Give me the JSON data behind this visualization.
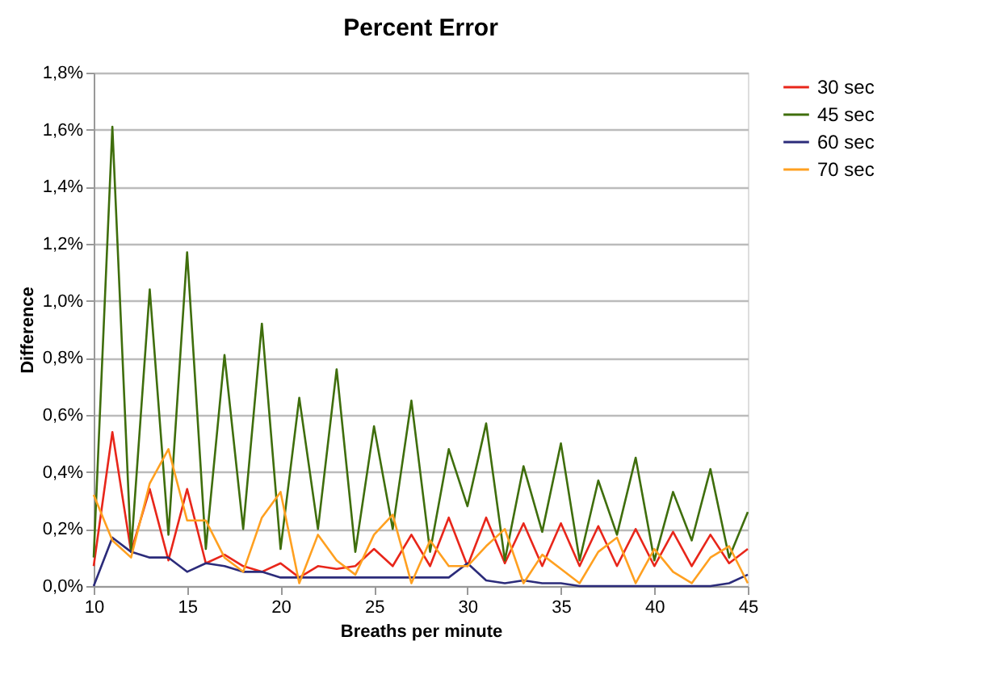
{
  "chart_data": {
    "type": "line",
    "title": "Percent Error",
    "xlabel": "Breaths per minute",
    "ylabel": "Difference",
    "x": [
      10,
      11,
      12,
      13,
      14,
      15,
      16,
      17,
      18,
      19,
      20,
      21,
      22,
      23,
      24,
      25,
      26,
      27,
      28,
      29,
      30,
      31,
      32,
      33,
      34,
      35,
      36,
      37,
      38,
      39,
      40,
      41,
      42,
      43,
      44,
      45
    ],
    "series": [
      {
        "name": "30 sec",
        "color": "#e8261a",
        "values": [
          0.07,
          0.54,
          0.12,
          0.34,
          0.09,
          0.34,
          0.08,
          0.11,
          0.07,
          0.05,
          0.08,
          0.03,
          0.07,
          0.06,
          0.07,
          0.13,
          0.07,
          0.18,
          0.07,
          0.24,
          0.07,
          0.24,
          0.08,
          0.22,
          0.07,
          0.22,
          0.07,
          0.21,
          0.07,
          0.2,
          0.07,
          0.19,
          0.07,
          0.18,
          0.08,
          0.13
        ]
      },
      {
        "name": "45 sec",
        "color": "#3f6e0c",
        "values": [
          0.1,
          1.61,
          0.12,
          1.04,
          0.18,
          1.17,
          0.13,
          0.81,
          0.2,
          0.92,
          0.13,
          0.66,
          0.2,
          0.76,
          0.12,
          0.56,
          0.2,
          0.65,
          0.12,
          0.48,
          0.28,
          0.57,
          0.09,
          0.42,
          0.19,
          0.5,
          0.09,
          0.37,
          0.18,
          0.45,
          0.09,
          0.33,
          0.16,
          0.41,
          0.1,
          0.26
        ]
      },
      {
        "name": "60 sec",
        "color": "#2b2b7a",
        "values": [
          0.0,
          0.17,
          0.12,
          0.1,
          0.1,
          0.05,
          0.08,
          0.07,
          0.05,
          0.05,
          0.03,
          0.03,
          0.03,
          0.03,
          0.03,
          0.03,
          0.03,
          0.03,
          0.03,
          0.03,
          0.08,
          0.02,
          0.01,
          0.02,
          0.01,
          0.01,
          0.0,
          0.0,
          0.0,
          0.0,
          0.0,
          0.0,
          0.0,
          0.0,
          0.01,
          0.04
        ]
      },
      {
        "name": "70 sec",
        "color": "#ffa020",
        "values": [
          0.32,
          0.16,
          0.1,
          0.36,
          0.48,
          0.23,
          0.23,
          0.1,
          0.05,
          0.24,
          0.33,
          0.01,
          0.18,
          0.09,
          0.04,
          0.18,
          0.25,
          0.01,
          0.16,
          0.07,
          0.07,
          0.14,
          0.2,
          0.01,
          0.11,
          0.06,
          0.01,
          0.12,
          0.17,
          0.01,
          0.13,
          0.05,
          0.01,
          0.1,
          0.14,
          0.01
        ]
      }
    ],
    "xlim": [
      10,
      45
    ],
    "xticks": [
      10,
      15,
      20,
      25,
      30,
      35,
      40,
      45
    ],
    "ylim": [
      0,
      1.8
    ],
    "yticks": [
      {
        "value": 0,
        "label": "0,0%"
      },
      {
        "value": 0.2,
        "label": "0,2%"
      },
      {
        "value": 0.4,
        "label": "0,4%"
      },
      {
        "value": 0.6,
        "label": "0,6%"
      },
      {
        "value": 0.8,
        "label": "0,8%"
      },
      {
        "value": 1.0,
        "label": "1,0%"
      },
      {
        "value": 1.2,
        "label": "1,2%"
      },
      {
        "value": 1.4,
        "label": "1,4%"
      },
      {
        "value": 1.6,
        "label": "1,6%"
      },
      {
        "value": 1.8,
        "label": "1,8%"
      }
    ],
    "grid": "y",
    "legend": "right",
    "marker": "none",
    "line_style": "solid"
  }
}
